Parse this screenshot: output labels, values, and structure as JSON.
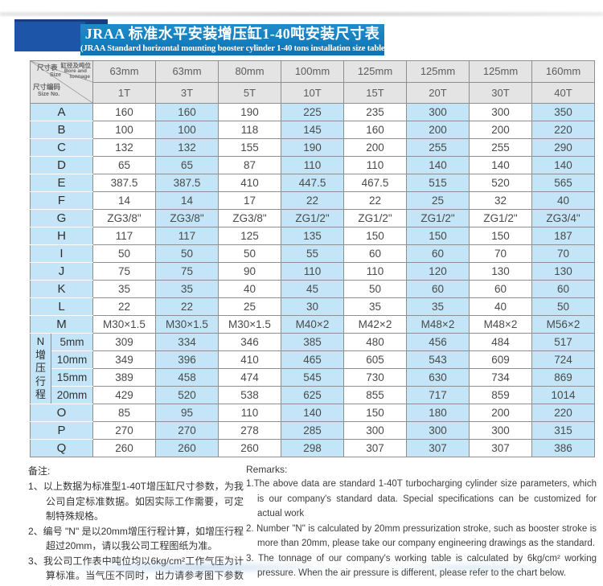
{
  "header": {
    "title_cn": "JRAA 标准水平安装增压缸1-40吨安装尺寸表",
    "title_en": "(JRAA Standard horizontal mounting booster cylinder 1-40 tons installation size table)"
  },
  "table": {
    "corner": {
      "size_cn": "尺寸表",
      "size_en": "Size",
      "bore_cn": "缸径及吨位",
      "bore_en1": "Bore and",
      "bore_en2": "tonnage",
      "no_cn": "尺寸编码",
      "no_en": "Size No."
    },
    "bores": [
      "63mm",
      "63mm",
      "80mm",
      "100mm",
      "125mm",
      "125mm",
      "125mm",
      "160mm"
    ],
    "tonnages": [
      "1T",
      "3T",
      "5T",
      "10T",
      "15T",
      "20T",
      "30T",
      "40T"
    ],
    "rows": [
      {
        "label": "A",
        "values": [
          "160",
          "160",
          "190",
          "225",
          "235",
          "300",
          "300",
          "350"
        ]
      },
      {
        "label": "B",
        "values": [
          "100",
          "100",
          "118",
          "145",
          "160",
          "200",
          "200",
          "220"
        ]
      },
      {
        "label": "C",
        "values": [
          "132",
          "132",
          "155",
          "190",
          "200",
          "255",
          "255",
          "290"
        ]
      },
      {
        "label": "D",
        "values": [
          "65",
          "65",
          "87",
          "110",
          "110",
          "140",
          "140",
          "140"
        ]
      },
      {
        "label": "E",
        "values": [
          "387.5",
          "387.5",
          "410",
          "447.5",
          "467.5",
          "515",
          "520",
          "565"
        ]
      },
      {
        "label": "F",
        "values": [
          "14",
          "14",
          "17",
          "22",
          "22",
          "25",
          "32",
          "40"
        ]
      },
      {
        "label": "G",
        "values": [
          "ZG3/8\"",
          "ZG3/8\"",
          "ZG3/8\"",
          "ZG1/2\"",
          "ZG1/2\"",
          "ZG1/2\"",
          "ZG1/2\"",
          "ZG3/4\""
        ]
      },
      {
        "label": "H",
        "values": [
          "117",
          "117",
          "125",
          "135",
          "150",
          "150",
          "150",
          "187"
        ]
      },
      {
        "label": "I",
        "values": [
          "50",
          "50",
          "50",
          "55",
          "60",
          "60",
          "70",
          "70"
        ]
      },
      {
        "label": "J",
        "values": [
          "75",
          "75",
          "90",
          "110",
          "110",
          "120",
          "130",
          "130"
        ]
      },
      {
        "label": "K",
        "values": [
          "35",
          "35",
          "40",
          "45",
          "50",
          "60",
          "60",
          "60"
        ]
      },
      {
        "label": "L",
        "values": [
          "22",
          "22",
          "25",
          "30",
          "35",
          "35",
          "40",
          "50"
        ]
      },
      {
        "label": "M",
        "values": [
          "M30×1.5",
          "M30×1.5",
          "M30×1.5",
          "M40×2",
          "M42×2",
          "M48×2",
          "M48×2",
          "M56×2"
        ]
      }
    ],
    "n_section": {
      "label": "N",
      "label_vertical": "增压行程",
      "rows": [
        {
          "label": "5mm",
          "values": [
            "309",
            "334",
            "346",
            "385",
            "480",
            "456",
            "484",
            "517"
          ]
        },
        {
          "label": "10mm",
          "values": [
            "349",
            "396",
            "410",
            "465",
            "605",
            "543",
            "609",
            "724"
          ]
        },
        {
          "label": "15mm",
          "values": [
            "389",
            "458",
            "474",
            "545",
            "730",
            "630",
            "734",
            "869"
          ]
        },
        {
          "label": "20mm",
          "values": [
            "429",
            "520",
            "538",
            "625",
            "855",
            "717",
            "859",
            "1014"
          ]
        }
      ]
    },
    "bottom_rows": [
      {
        "label": "O",
        "values": [
          "85",
          "95",
          "110",
          "140",
          "150",
          "180",
          "200",
          "220"
        ]
      },
      {
        "label": "P",
        "values": [
          "270",
          "270",
          "278",
          "285",
          "300",
          "300",
          "300",
          "315"
        ]
      },
      {
        "label": "Q",
        "values": [
          "260",
          "260",
          "260",
          "298",
          "307",
          "307",
          "307",
          "386"
        ]
      }
    ]
  },
  "notes_cn": {
    "heading": "备注:",
    "items": [
      "1、以上数据为标准型1-40T增压缸尺寸参数，为我公司自定标准数据。如因实际工作需要，可定制特殊规格。",
      "2、编号 \"N\" 是以20mm增压行程计算，如增压行程超过20mm，请以我公司工程图纸为准。",
      "3、我公司工作表中吨位均以6kg/cm²工作气压为计算标准。当气压不同时，出力请参考图下参数表。"
    ]
  },
  "notes_en": {
    "heading": "Remarks:",
    "items": [
      "1.The above data are standard 1-40T turbocharging cylinder size parameters, which is our company's standard data. Special specifications can be customized for actual work",
      "2. Number \"N\" is calculated by 20mm pressurization stroke, such as booster stroke is more than 20mm, please take our company engineering drawings as the standard.",
      "3. The tonnage of our company's working table is calculated by 6kg/cm² working pressure. When the air pressure is different, please refer to the chart below."
    ]
  },
  "colors": {
    "banner_hi": "#1f8cca",
    "banner_lo": "#0d73b4",
    "ribbon_square": "#1d55a8",
    "ribbon_fold": "#163f7e",
    "cell_blue": "#c3e5f7",
    "header_gray": "#e4e4e4",
    "grid_gray": "#8f8f8f"
  }
}
